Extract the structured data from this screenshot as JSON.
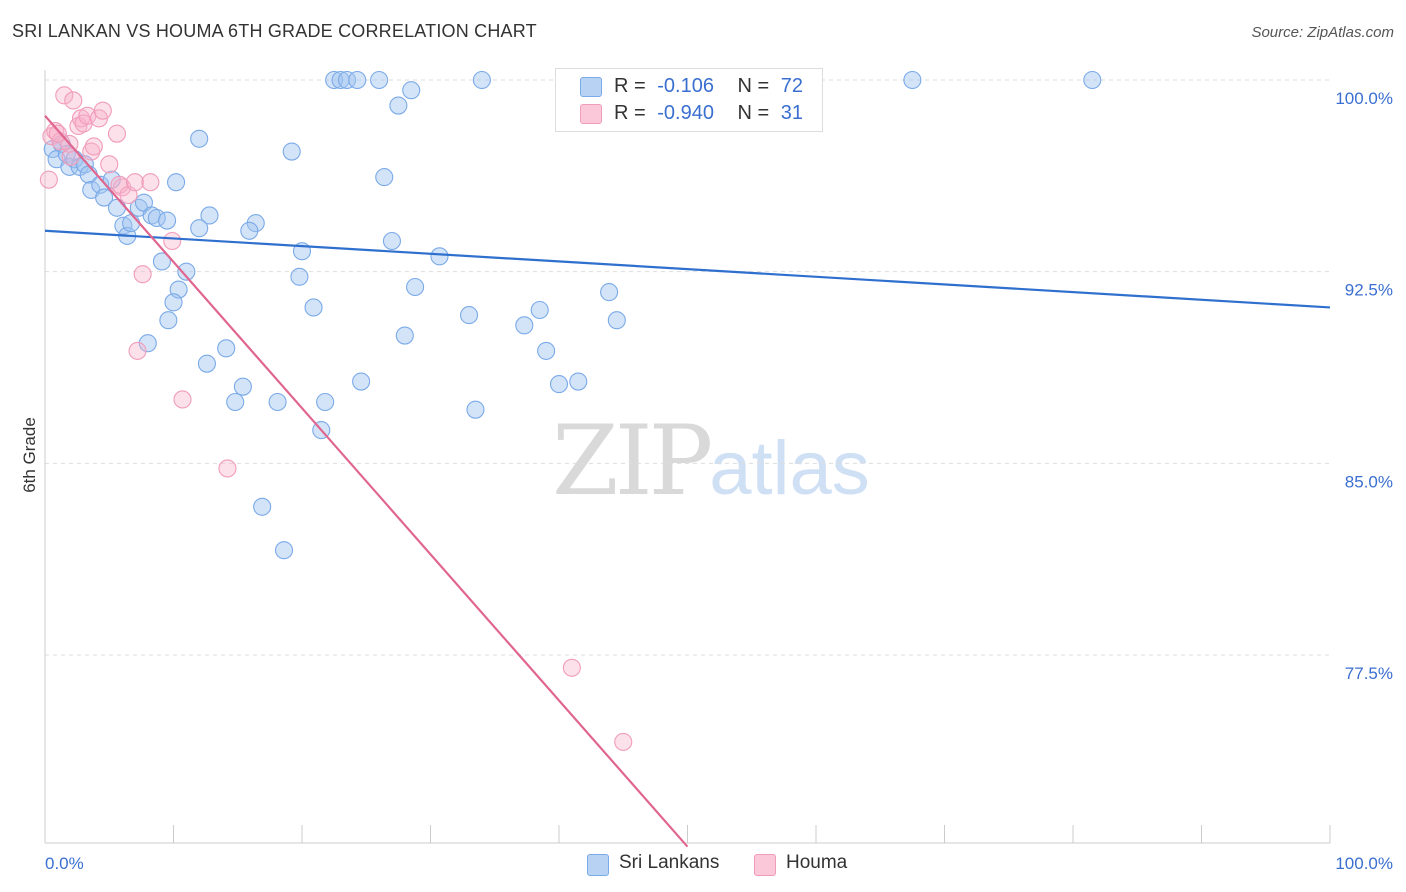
{
  "title": "SRI LANKAN VS HOUMA 6TH GRADE CORRELATION CHART",
  "source": "Source: ZipAtlas.com",
  "watermark": {
    "zip": "ZIP",
    "atlas": "atlas"
  },
  "legend_top": [
    {
      "r_label": "R =",
      "r_value": "-0.106",
      "n_label": "N =",
      "n_value": "72",
      "color": "#7aaae8"
    },
    {
      "r_label": "R =",
      "r_value": "-0.940",
      "n_label": "N =",
      "n_value": "31",
      "color": "#f19cba"
    }
  ],
  "chart_data": {
    "type": "scatter",
    "title": "SRI LANKAN VS HOUMA 6TH GRADE CORRELATION CHART",
    "xlabel": "",
    "ylabel": "6th Grade",
    "xlim": [
      0,
      100
    ],
    "ylim": [
      70.0,
      100.5
    ],
    "x_tick_labels": [
      "0.0%",
      "100.0%"
    ],
    "y_ticks": [
      77.5,
      85.0,
      92.5,
      100.0
    ],
    "y_tick_labels": [
      "77.5%",
      "85.0%",
      "92.5%",
      "100.0%"
    ],
    "grid": true,
    "legend_position": "bottom-center",
    "series": [
      {
        "name": "Sri Lankans",
        "color": "#7aaae8",
        "line_color": "#2f6fce",
        "trend": {
          "x": [
            0,
            100
          ],
          "y": [
            94.1,
            91.1
          ]
        },
        "points": [
          [
            0.6,
            97.3
          ],
          [
            0.9,
            96.9
          ],
          [
            1.3,
            97.5
          ],
          [
            1.7,
            97.1
          ],
          [
            1.9,
            96.6
          ],
          [
            2.3,
            96.9
          ],
          [
            2.7,
            96.6
          ],
          [
            3.1,
            96.7
          ],
          [
            3.4,
            96.3
          ],
          [
            3.6,
            95.7
          ],
          [
            4.3,
            95.9
          ],
          [
            4.6,
            95.4
          ],
          [
            5.2,
            96.1
          ],
          [
            5.6,
            95.0
          ],
          [
            6.1,
            94.3
          ],
          [
            6.4,
            93.9
          ],
          [
            6.7,
            94.4
          ],
          [
            7.3,
            95.0
          ],
          [
            7.7,
            95.2
          ],
          [
            8.3,
            94.7
          ],
          [
            8.7,
            94.6
          ],
          [
            9.5,
            94.5
          ],
          [
            9.1,
            92.9
          ],
          [
            10.2,
            96.0
          ],
          [
            11.0,
            92.5
          ],
          [
            10.4,
            91.8
          ],
          [
            10.0,
            91.3
          ],
          [
            9.6,
            90.6
          ],
          [
            8.0,
            89.7
          ],
          [
            12.8,
            94.7
          ],
          [
            12.0,
            94.2
          ],
          [
            12.6,
            88.9
          ],
          [
            14.1,
            89.5
          ],
          [
            15.4,
            88.0
          ],
          [
            14.8,
            87.4
          ],
          [
            16.4,
            94.4
          ],
          [
            15.9,
            94.1
          ],
          [
            16.9,
            83.3
          ],
          [
            18.1,
            87.4
          ],
          [
            18.6,
            81.6
          ],
          [
            19.2,
            97.2
          ],
          [
            19.8,
            92.3
          ],
          [
            20.0,
            93.3
          ],
          [
            20.9,
            91.1
          ],
          [
            21.5,
            86.3
          ],
          [
            21.8,
            87.4
          ],
          [
            22.5,
            100.0
          ],
          [
            23.0,
            100.0
          ],
          [
            23.5,
            100.0
          ],
          [
            24.3,
            100.0
          ],
          [
            24.6,
            88.2
          ],
          [
            26.0,
            100.0
          ],
          [
            26.4,
            96.2
          ],
          [
            27.0,
            93.7
          ],
          [
            27.5,
            99.0
          ],
          [
            28.5,
            99.6
          ],
          [
            28.0,
            90.0
          ],
          [
            28.8,
            91.9
          ],
          [
            30.7,
            93.1
          ],
          [
            33.0,
            90.8
          ],
          [
            33.5,
            87.1
          ],
          [
            34.0,
            100.0
          ],
          [
            37.3,
            90.4
          ],
          [
            38.5,
            91.0
          ],
          [
            39.0,
            89.4
          ],
          [
            40.0,
            88.1
          ],
          [
            41.5,
            88.2
          ],
          [
            43.9,
            91.7
          ],
          [
            44.5,
            90.6
          ],
          [
            67.5,
            100.0
          ],
          [
            81.5,
            100.0
          ],
          [
            12.0,
            97.7
          ]
        ]
      },
      {
        "name": "Houma",
        "color": "#f19cba",
        "line_color": "#e0668f",
        "trend": {
          "x": [
            0,
            50
          ],
          "y": [
            98.6,
            70.0
          ]
        },
        "points": [
          [
            0.3,
            96.1
          ],
          [
            0.5,
            97.8
          ],
          [
            0.8,
            98.0
          ],
          [
            1.2,
            97.6
          ],
          [
            1.5,
            99.4
          ],
          [
            1.9,
            97.5
          ],
          [
            2.2,
            99.2
          ],
          [
            2.6,
            98.2
          ],
          [
            2.8,
            98.5
          ],
          [
            3.0,
            98.3
          ],
          [
            3.3,
            98.6
          ],
          [
            3.6,
            97.2
          ],
          [
            3.8,
            97.4
          ],
          [
            4.2,
            98.5
          ],
          [
            4.5,
            98.8
          ],
          [
            5.0,
            96.7
          ],
          [
            5.6,
            97.9
          ],
          [
            6.0,
            95.8
          ],
          [
            5.8,
            95.9
          ],
          [
            6.5,
            95.5
          ],
          [
            7.0,
            96.0
          ],
          [
            8.2,
            96.0
          ],
          [
            7.6,
            92.4
          ],
          [
            7.2,
            89.4
          ],
          [
            9.9,
            93.7
          ],
          [
            10.7,
            87.5
          ],
          [
            14.2,
            84.8
          ],
          [
            41.0,
            77.0
          ],
          [
            45.0,
            74.1
          ],
          [
            1.0,
            97.9
          ],
          [
            2.0,
            97.0
          ]
        ]
      }
    ]
  }
}
